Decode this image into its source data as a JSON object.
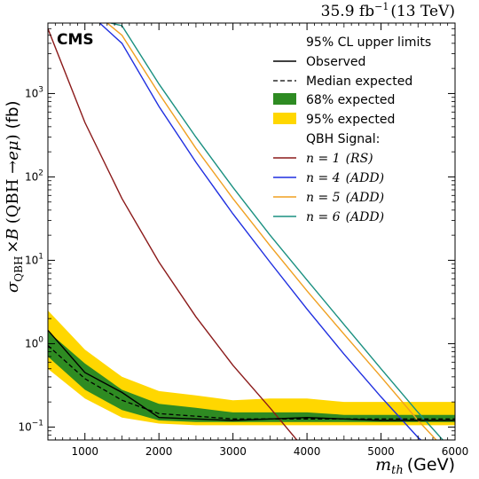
{
  "chart_data": {
    "type": "line",
    "lumi_label": "35.9 fb",
    "lumi_sup": "−1",
    "lumi_energy": "(13 TeV)",
    "experiment_label": "CMS",
    "xlabel": {
      "main": "m",
      "sub": "th",
      "unit": "(GeV)"
    },
    "ylabel": {
      "sigma": "σ",
      "sub": "QBH",
      "times": "×",
      "B": "B",
      "paren_open": "(QBH →",
      "channel": "eμ",
      "paren_close": ")",
      "unit": "(fb)"
    },
    "x_range": [
      500,
      6000
    ],
    "y_range": [
      0.07,
      7000
    ],
    "y_scale": "log",
    "x_ticks": [
      1000,
      2000,
      3000,
      4000,
      5000,
      6000
    ],
    "x_tick_labels": [
      "1000",
      "2000",
      "3000",
      "4000",
      "5000",
      "6000"
    ],
    "y_ticks": [
      {
        "value": 0.1,
        "base": "10",
        "exp": "−1"
      },
      {
        "value": 1,
        "base": "10",
        "exp": "0"
      },
      {
        "value": 10,
        "base": "10",
        "exp": "1"
      },
      {
        "value": 100,
        "base": "10",
        "exp": "2"
      },
      {
        "value": 1000,
        "base": "10",
        "exp": "3"
      }
    ],
    "legend": {
      "title": "95% CL upper limits",
      "observed": "Observed",
      "median": "Median expected",
      "band68": "68% expected",
      "band95": "95% expected",
      "signal_title": "QBH Signal:",
      "signals": [
        {
          "n": "n = 1",
          "model": "(RS)"
        },
        {
          "n": "n = 4",
          "model": "(ADD)"
        },
        {
          "n": "n = 5",
          "model": "(ADD)"
        },
        {
          "n": "n = 6",
          "model": "(ADD)"
        }
      ]
    },
    "colors": {
      "band68": "#2e8b22",
      "band95": "#ffd700",
      "observed": "#000000",
      "median": "#000000",
      "n1": "#8b1a1a",
      "n4": "#1f2fe0",
      "n5": "#f0a020",
      "n6": "#1a9080"
    },
    "expected_x": [
      500,
      1000,
      1500,
      2000,
      2500,
      3000,
      3500,
      4000,
      4500,
      5000,
      5500,
      6000
    ],
    "band95_low": [
      0.5,
      0.22,
      0.13,
      0.11,
      0.105,
      0.105,
      0.105,
      0.105,
      0.105,
      0.105,
      0.105,
      0.105
    ],
    "band95_high": [
      2.5,
      0.85,
      0.4,
      0.27,
      0.24,
      0.21,
      0.22,
      0.22,
      0.2,
      0.2,
      0.2,
      0.2
    ],
    "band68_low": [
      0.7,
      0.28,
      0.16,
      0.12,
      0.115,
      0.115,
      0.115,
      0.115,
      0.115,
      0.115,
      0.115,
      0.115
    ],
    "band68_high": [
      1.4,
      0.58,
      0.28,
      0.19,
      0.17,
      0.15,
      0.15,
      0.15,
      0.14,
      0.14,
      0.14,
      0.14
    ],
    "median": [
      0.95,
      0.38,
      0.21,
      0.145,
      0.135,
      0.125,
      0.125,
      0.125,
      0.125,
      0.125,
      0.125,
      0.125
    ],
    "observed_x": [
      500,
      1000,
      1500,
      2000,
      2500,
      3000,
      3500,
      4000,
      4500,
      5000,
      5500,
      6000
    ],
    "observed": [
      1.45,
      0.45,
      0.26,
      0.13,
      0.125,
      0.12,
      0.125,
      0.13,
      0.125,
      0.12,
      0.12,
      0.12
    ],
    "signals": [
      {
        "key": "n1",
        "x": [
          500,
          1000,
          1500,
          2000,
          2500,
          3000,
          3500,
          4000
        ],
        "y": [
          6000,
          450,
          55,
          9.5,
          2.1,
          0.55,
          0.17,
          0.05
        ]
      },
      {
        "key": "n4",
        "x": [
          1200,
          1500,
          2000,
          2500,
          3000,
          3500,
          4000,
          4500,
          5000,
          5500,
          6000
        ],
        "y": [
          7000,
          4000,
          700,
          150,
          36,
          9.5,
          2.6,
          0.75,
          0.23,
          0.075,
          0.03
        ]
      },
      {
        "key": "n5",
        "x": [
          1300,
          1500,
          2000,
          2500,
          3000,
          3500,
          4000,
          4500,
          5000,
          5500,
          6000
        ],
        "y": [
          7000,
          5000,
          1000,
          220,
          55,
          15,
          4.3,
          1.3,
          0.4,
          0.12,
          0.04
        ]
      },
      {
        "key": "n6",
        "x": [
          1350,
          1500,
          2000,
          2500,
          3000,
          3500,
          4000,
          4500,
          5000,
          5500,
          6000
        ],
        "y": [
          7000,
          6500,
          1300,
          300,
          75,
          20,
          5.8,
          1.7,
          0.5,
          0.15,
          0.048
        ]
      }
    ]
  }
}
